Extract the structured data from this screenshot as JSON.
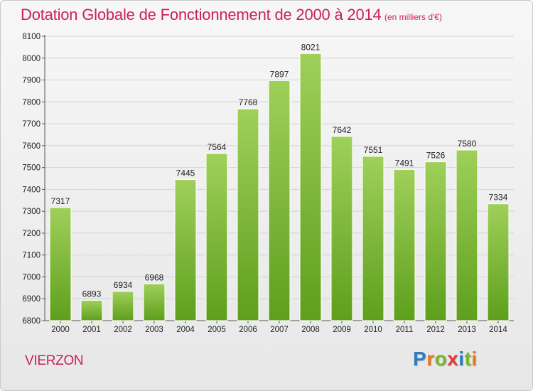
{
  "title": "Dotation Globale de Fonctionnement de 2000 à 2014",
  "subtitle": "(en milliers d'€)",
  "place": "VIERZON",
  "logo": {
    "text": "Proxiti",
    "colors": [
      "#2d7cc1",
      "#e8771d",
      "#7bb42a",
      "#e33a3a",
      "#2d7cc1",
      "#7bb42a",
      "#e8771d"
    ]
  },
  "chart_data": {
    "type": "bar",
    "categories": [
      "2000",
      "2001",
      "2002",
      "2003",
      "2004",
      "2005",
      "2006",
      "2007",
      "2008",
      "2009",
      "2010",
      "2011",
      "2012",
      "2013",
      "2014"
    ],
    "values": [
      7317,
      6893,
      6934,
      6968,
      7445,
      7564,
      7768,
      7897,
      8021,
      7642,
      7551,
      7491,
      7526,
      7580,
      7334
    ],
    "title": "Dotation Globale de Fonctionnement de 2000 à 2014",
    "ylim": [
      6800,
      8100
    ],
    "yticks": [
      6800,
      6900,
      7000,
      7100,
      7200,
      7300,
      7400,
      7500,
      7600,
      7700,
      7800,
      7900,
      8000,
      8100
    ],
    "grid": true,
    "bar_color_top": "#9fd05a",
    "bar_color_bottom": "#5e9f1c"
  }
}
